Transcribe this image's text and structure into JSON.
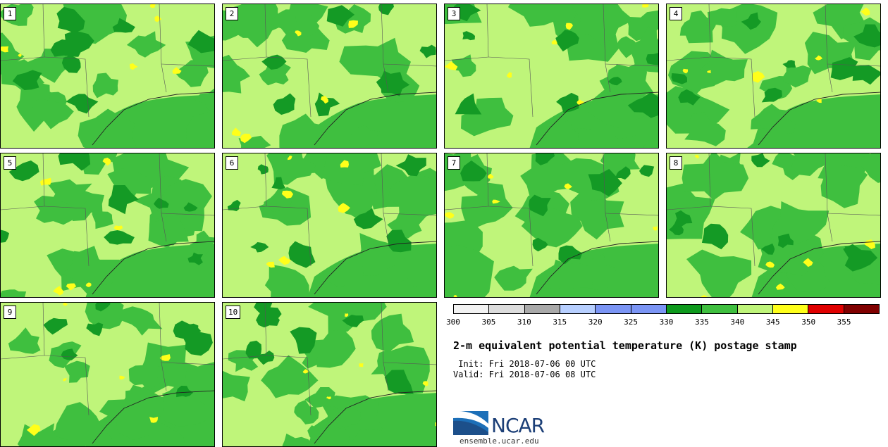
{
  "members": [
    "1",
    "2",
    "3",
    "4",
    "5",
    "6",
    "7",
    "8",
    "9",
    "10"
  ],
  "colorbar": {
    "colors": [
      "#f2f2f2",
      "#dcdcdc",
      "#a9a9a9",
      "#b7cfff",
      "#7b95f5",
      "#7b95f5",
      "#0e9a1d",
      "#3fbf3f",
      "#bff57a",
      "#ffff1a",
      "#e00000",
      "#800000"
    ],
    "ticks": [
      "300",
      "305",
      "310",
      "315",
      "320",
      "325",
      "330",
      "335",
      "340",
      "345",
      "350",
      "355"
    ]
  },
  "title": "2-m equivalent potential temperature (K) postage stamp",
  "init_line": " Init: Fri 2018-07-06 00 UTC",
  "valid_line": "Valid: Fri 2018-07-06 08 UTC",
  "logo": {
    "text": "NCAR",
    "site": "ensemble.ucar.edu"
  }
}
